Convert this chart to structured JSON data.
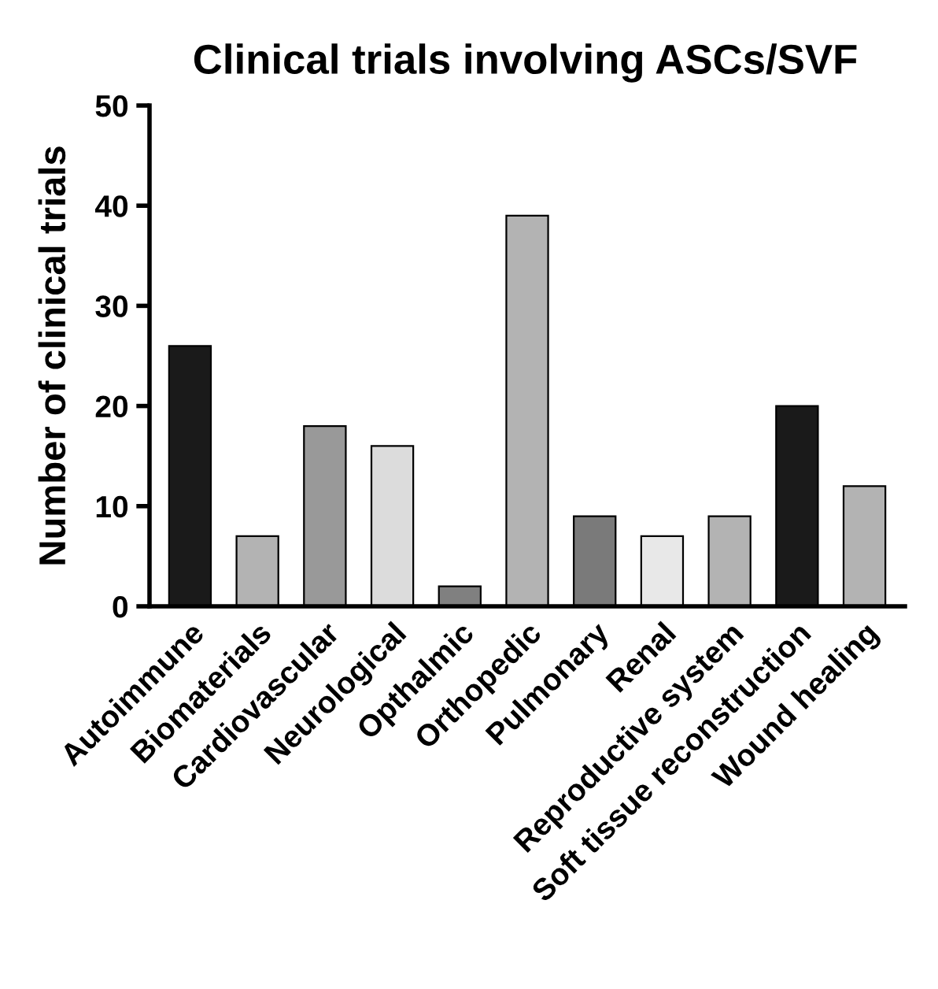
{
  "chart_data": {
    "type": "bar",
    "title": "Clinical trials involving ASCs/SVF",
    "ylabel": "Number of clinical trials",
    "categories": [
      "Autoimmune",
      "Biomaterials",
      "Cardiovascular",
      "Neurological",
      "Opthalmic",
      "Orthopedic",
      "Pulmonary",
      "Renal",
      "Reproductive system",
      "Soft tissue reconstruction",
      "Wound healing"
    ],
    "values": [
      26,
      7,
      18,
      16,
      2,
      39,
      9,
      7,
      9,
      20,
      12
    ],
    "colors": [
      "#1a1a1a",
      "#b3b3b3",
      "#999999",
      "#dcdcdc",
      "#808080",
      "#b3b3b3",
      "#7a7a7a",
      "#e8e8e8",
      "#b3b3b3",
      "#1a1a1a",
      "#b3b3b3"
    ],
    "ylim": [
      0,
      50
    ],
    "yticks": [
      0,
      10,
      20,
      30,
      40,
      50
    ],
    "grid": false,
    "legend": false
  }
}
